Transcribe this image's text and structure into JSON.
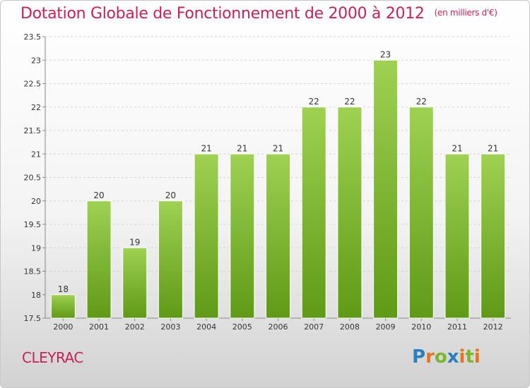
{
  "title": "Dotation Globale de Fonctionnement de 2000 à 2012",
  "unit": "(en milliers d'€)",
  "city": "CLEYRAC",
  "logo": {
    "letters": [
      "P",
      "r",
      "o",
      "x",
      "i",
      "t",
      "i"
    ],
    "colors": [
      "#2a7fc1",
      "#e8731e",
      "#7ab829",
      "#2a7fc1",
      "#e8731e",
      "#7ab829",
      "#e8731e"
    ]
  },
  "colors": {
    "bar_top": "#9fd152",
    "bar_bottom": "#5f9a16",
    "accent": "#c6215a"
  },
  "chart_data": {
    "type": "bar",
    "categories": [
      "2000",
      "2001",
      "2002",
      "2003",
      "2004",
      "2005",
      "2006",
      "2007",
      "2008",
      "2009",
      "2010",
      "2011",
      "2012"
    ],
    "values": [
      18,
      20,
      19,
      20,
      21,
      21,
      21,
      22,
      22,
      23,
      22,
      21,
      21
    ],
    "data_labels": [
      "18",
      "20",
      "19",
      "20",
      "21",
      "21",
      "21",
      "22",
      "22",
      "23",
      "22",
      "21",
      "21"
    ],
    "ylim": [
      17.5,
      23.5
    ],
    "yticks": [
      17.5,
      18,
      18.5,
      19,
      19.5,
      20,
      20.5,
      21,
      21.5,
      22,
      22.5,
      23,
      23.5
    ],
    "ytick_labels": [
      "17.5",
      "18",
      "18.5",
      "19",
      "19.5",
      "20",
      "20.5",
      "21",
      "21.5",
      "22",
      "22.5",
      "23",
      "23.5"
    ],
    "grid": true
  }
}
